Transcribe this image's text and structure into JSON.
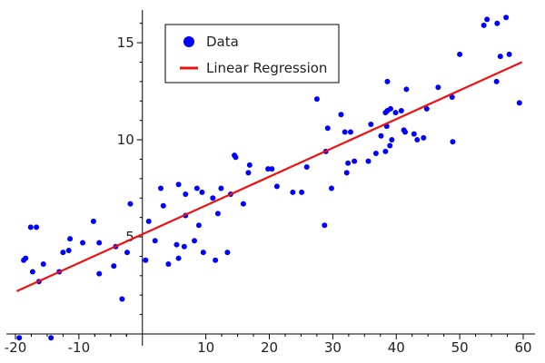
{
  "chart_data": {
    "type": "scatter",
    "xlim": [
      -20,
      60
    ],
    "ylim": [
      0,
      16.5
    ],
    "x_ticks": [
      "-20",
      "-10",
      "10",
      "20",
      "30",
      "40",
      "50",
      "60"
    ],
    "x_tick_values": [
      -20,
      -10,
      10,
      20,
      30,
      40,
      50,
      60
    ],
    "y_ticks": [
      "5",
      "10",
      "15"
    ],
    "y_tick_values": [
      5,
      10,
      15
    ],
    "grid": false,
    "legend_position": "top-left",
    "series": [
      {
        "name": "Data",
        "kind": "scatter",
        "color": "#0000ff",
        "points": [
          [
            -19.4,
            -0.2
          ],
          [
            -18.7,
            3.8
          ],
          [
            -18.4,
            3.9
          ],
          [
            -17.6,
            5.5
          ],
          [
            -17.3,
            3.2
          ],
          [
            -16.7,
            5.5
          ],
          [
            -16.3,
            2.7
          ],
          [
            -15.6,
            3.6
          ],
          [
            -14.4,
            -0.2
          ],
          [
            -13.1,
            3.2
          ],
          [
            -12.5,
            4.2
          ],
          [
            -11.6,
            4.3
          ],
          [
            -11.4,
            4.9
          ],
          [
            -9.4,
            4.7
          ],
          [
            -7.7,
            5.8
          ],
          [
            -6.8,
            3.1
          ],
          [
            -6.8,
            4.7
          ],
          [
            -4.5,
            3.5
          ],
          [
            -4.2,
            4.5
          ],
          [
            -3.2,
            1.8
          ],
          [
            -2.4,
            4.2
          ],
          [
            -1.9,
            6.7
          ],
          [
            0.5,
            3.8
          ],
          [
            1.0,
            5.8
          ],
          [
            2.0,
            4.8
          ],
          [
            2.9,
            7.5
          ],
          [
            3.3,
            6.6
          ],
          [
            4.1,
            3.6
          ],
          [
            5.4,
            4.6
          ],
          [
            5.7,
            3.9
          ],
          [
            5.7,
            7.7
          ],
          [
            6.6,
            4.5
          ],
          [
            6.8,
            6.1
          ],
          [
            6.8,
            7.2
          ],
          [
            8.2,
            4.8
          ],
          [
            8.6,
            7.5
          ],
          [
            8.9,
            5.6
          ],
          [
            9.4,
            7.3
          ],
          [
            9.6,
            4.2
          ],
          [
            11.1,
            7.0
          ],
          [
            11.5,
            3.8
          ],
          [
            11.9,
            6.2
          ],
          [
            12.4,
            7.5
          ],
          [
            13.4,
            4.2
          ],
          [
            13.9,
            7.2
          ],
          [
            14.5,
            9.2
          ],
          [
            14.7,
            9.1
          ],
          [
            15.9,
            6.7
          ],
          [
            16.7,
            8.3
          ],
          [
            16.9,
            8.7
          ],
          [
            19.8,
            8.5
          ],
          [
            20.4,
            8.5
          ],
          [
            21.2,
            7.6
          ],
          [
            23.7,
            7.3
          ],
          [
            25.1,
            7.3
          ],
          [
            25.9,
            8.6
          ],
          [
            27.5,
            12.1
          ],
          [
            28.7,
            5.6
          ],
          [
            28.9,
            9.4
          ],
          [
            29.2,
            10.6
          ],
          [
            29.8,
            7.5
          ],
          [
            31.3,
            11.3
          ],
          [
            31.9,
            10.4
          ],
          [
            32.2,
            8.3
          ],
          [
            32.4,
            8.8
          ],
          [
            32.8,
            10.4
          ],
          [
            33.4,
            8.9
          ],
          [
            35.6,
            8.9
          ],
          [
            36.0,
            10.8
          ],
          [
            36.8,
            9.3
          ],
          [
            37.6,
            10.2
          ],
          [
            38.3,
            11.4
          ],
          [
            38.3,
            9.4
          ],
          [
            38.5,
            10.7
          ],
          [
            38.6,
            13.0
          ],
          [
            38.6,
            11.5
          ],
          [
            39.0,
            9.7
          ],
          [
            39.1,
            11.6
          ],
          [
            39.3,
            10.0
          ],
          [
            39.9,
            11.4
          ],
          [
            40.8,
            11.5
          ],
          [
            41.2,
            10.5
          ],
          [
            41.4,
            10.4
          ],
          [
            41.6,
            12.6
          ],
          [
            42.8,
            10.3
          ],
          [
            43.3,
            10.0
          ],
          [
            44.3,
            10.1
          ],
          [
            44.8,
            11.6
          ],
          [
            46.6,
            12.7
          ],
          [
            48.8,
            12.2
          ],
          [
            48.9,
            9.9
          ],
          [
            50.0,
            14.4
          ],
          [
            53.8,
            15.9
          ],
          [
            54.3,
            16.2
          ],
          [
            55.8,
            13.0
          ],
          [
            55.9,
            16.0
          ],
          [
            56.4,
            14.3
          ],
          [
            57.3,
            16.3
          ],
          [
            57.8,
            14.4
          ],
          [
            59.4,
            11.9
          ]
        ]
      },
      {
        "name": "Linear Regression",
        "kind": "line",
        "color": "#ee1111",
        "x": [
          -19.8,
          59.8
        ],
        "y": [
          2.2,
          14.0
        ]
      }
    ]
  }
}
